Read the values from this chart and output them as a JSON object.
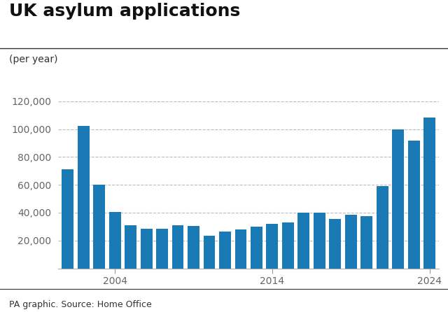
{
  "title": "UK asylum applications",
  "subtitle": "(per year)",
  "source": "PA graphic. Source: Home Office",
  "years": [
    2001,
    2002,
    2003,
    2004,
    2005,
    2006,
    2007,
    2008,
    2009,
    2010,
    2011,
    2012,
    2013,
    2014,
    2015,
    2016,
    2017,
    2018,
    2019,
    2020,
    2021,
    2022,
    2023,
    2024
  ],
  "values": [
    71025,
    102080,
    60045,
    40625,
    30840,
    28320,
    28320,
    30750,
    30560,
    23507,
    26205,
    28017,
    29875,
    31745,
    32733,
    40035,
    39771,
    35566,
    38586,
    37562,
    58878,
    100000,
    91813,
    108138
  ],
  "bar_color": "#1a7ab5",
  "ylim": [
    0,
    130000
  ],
  "yticks": [
    20000,
    40000,
    60000,
    80000,
    100000,
    120000
  ],
  "xtick_years": [
    2004,
    2014,
    2024
  ],
  "title_fontsize": 18,
  "subtitle_fontsize": 10,
  "source_fontsize": 9,
  "tick_fontsize": 10,
  "background_color": "#ffffff",
  "grid_color": "#bbbbbb",
  "title_color": "#111111",
  "subtitle_color": "#333333",
  "source_color": "#333333",
  "tick_color": "#666666"
}
